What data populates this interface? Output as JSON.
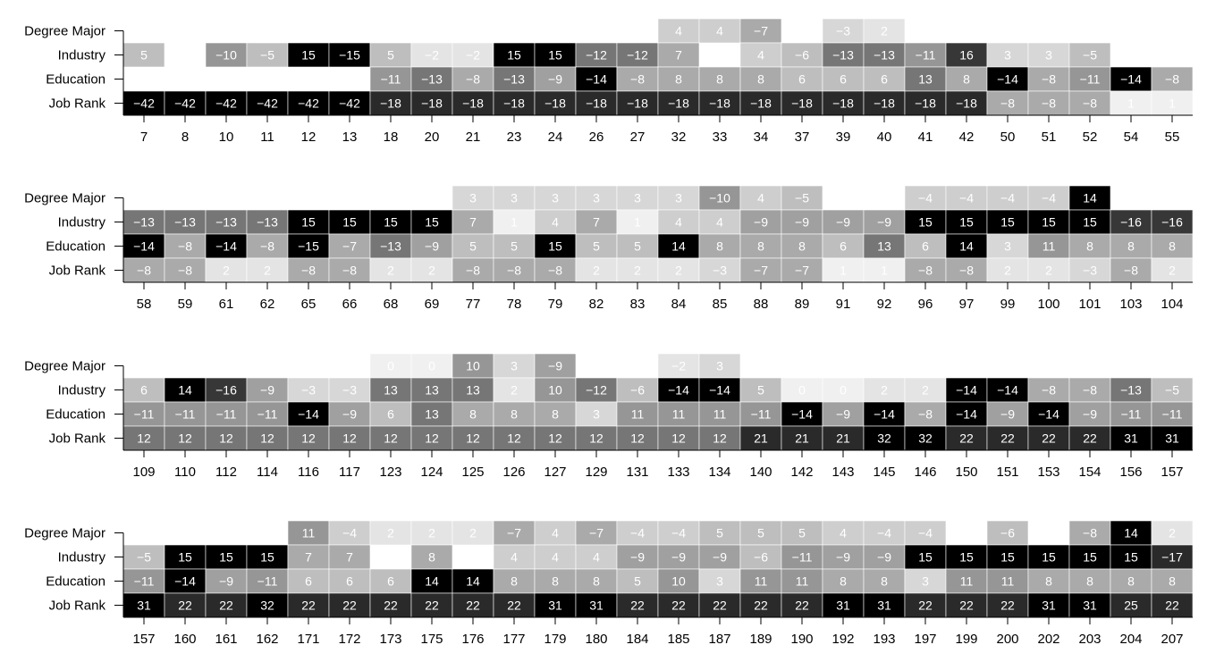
{
  "chart_data": {
    "type": "heatmap",
    "row_labels": [
      "Degree Major",
      "Industry",
      "Education",
      "Job Rank"
    ],
    "color_scale": "grayscale — darker cells have larger absolute values; blank cells have no value",
    "panels": [
      {
        "columns": [
          "7",
          "8",
          "10",
          "11",
          "12",
          "13",
          "18",
          "20",
          "21",
          "23",
          "24",
          "26",
          "27",
          "32",
          "33",
          "34",
          "37",
          "39",
          "40",
          "41",
          "42",
          "50",
          "51",
          "52",
          "54",
          "55"
        ],
        "rows": {
          "Degree Major": [
            null,
            null,
            null,
            null,
            null,
            null,
            null,
            null,
            null,
            null,
            null,
            null,
            null,
            4,
            4,
            -7,
            null,
            -3,
            2,
            null,
            null,
            null,
            null,
            null,
            null,
            null
          ],
          "Industry": [
            5,
            null,
            -10,
            -5,
            15,
            -15,
            5,
            -2,
            -2,
            15,
            15,
            -12,
            -12,
            7,
            null,
            4,
            -6,
            -13,
            -13,
            -11,
            16,
            3,
            3,
            -5,
            null,
            null
          ],
          "Education": [
            null,
            null,
            null,
            null,
            null,
            null,
            -11,
            -13,
            -8,
            -13,
            -9,
            -14,
            -8,
            8,
            8,
            8,
            6,
            6,
            6,
            13,
            8,
            -14,
            -8,
            -11,
            -14,
            -8
          ],
          "Job Rank": [
            -42,
            -42,
            -42,
            -42,
            -42,
            -42,
            -18,
            -18,
            -18,
            -18,
            -18,
            -18,
            -18,
            -18,
            -18,
            -18,
            -18,
            -18,
            -18,
            -18,
            -18,
            -8,
            -8,
            -8,
            1,
            1
          ]
        }
      },
      {
        "columns": [
          "58",
          "59",
          "61",
          "62",
          "65",
          "66",
          "68",
          "69",
          "77",
          "78",
          "79",
          "82",
          "83",
          "84",
          "85",
          "88",
          "89",
          "91",
          "92",
          "96",
          "97",
          "99",
          "100",
          "101",
          "103",
          "104"
        ],
        "rows": {
          "Degree Major": [
            null,
            null,
            null,
            null,
            null,
            null,
            null,
            null,
            3,
            3,
            3,
            3,
            3,
            3,
            -10,
            4,
            -5,
            null,
            null,
            -4,
            -4,
            -4,
            -4,
            14,
            null,
            null
          ],
          "Industry": [
            -13,
            -13,
            -13,
            -13,
            15,
            15,
            15,
            15,
            7,
            1,
            4,
            7,
            1,
            4,
            4,
            -9,
            -9,
            -9,
            -9,
            15,
            15,
            15,
            15,
            15,
            -16,
            -16
          ],
          "Education": [
            -14,
            -8,
            -14,
            -8,
            -15,
            -7,
            -13,
            -9,
            5,
            5,
            15,
            5,
            5,
            14,
            8,
            8,
            8,
            6,
            13,
            6,
            14,
            3,
            11,
            8,
            8,
            8
          ],
          "Job Rank": [
            -8,
            -8,
            2,
            2,
            -8,
            -8,
            2,
            2,
            -8,
            -8,
            -8,
            2,
            2,
            2,
            -3,
            -7,
            -7,
            1,
            1,
            -8,
            -8,
            2,
            2,
            -3,
            -8,
            2
          ]
        }
      },
      {
        "columns": [
          "109",
          "110",
          "112",
          "114",
          "116",
          "117",
          "123",
          "124",
          "125",
          "126",
          "127",
          "129",
          "131",
          "133",
          "134",
          "140",
          "142",
          "143",
          "145",
          "146",
          "150",
          "151",
          "153",
          "154",
          "156",
          "157"
        ],
        "rows": {
          "Degree Major": [
            null,
            null,
            null,
            null,
            null,
            null,
            0,
            0,
            10,
            3,
            -9,
            null,
            null,
            -2,
            3,
            null,
            null,
            null,
            null,
            null,
            null,
            null,
            null,
            null,
            null,
            null
          ],
          "Industry": [
            6,
            14,
            -16,
            -9,
            -3,
            -3,
            13,
            13,
            13,
            2,
            10,
            -12,
            -6,
            -14,
            -14,
            5,
            0,
            0,
            2,
            2,
            -14,
            -14,
            -8,
            -8,
            -13,
            -5
          ],
          "Education": [
            -11,
            -11,
            -11,
            -11,
            -14,
            -9,
            6,
            13,
            8,
            8,
            8,
            3,
            11,
            11,
            11,
            -11,
            -14,
            -9,
            -14,
            -8,
            -14,
            -9,
            -14,
            -9,
            -11,
            -11
          ],
          "Job Rank": [
            12,
            12,
            12,
            12,
            12,
            12,
            12,
            12,
            12,
            12,
            12,
            12,
            12,
            12,
            12,
            21,
            21,
            21,
            32,
            32,
            22,
            22,
            22,
            22,
            31,
            31
          ]
        }
      },
      {
        "columns": [
          "157",
          "160",
          "161",
          "162",
          "171",
          "172",
          "173",
          "175",
          "176",
          "177",
          "179",
          "180",
          "184",
          "185",
          "187",
          "189",
          "190",
          "192",
          "193",
          "197",
          "199",
          "200",
          "202",
          "203",
          "204",
          "207"
        ],
        "rows": {
          "Degree Major": [
            null,
            null,
            null,
            null,
            11,
            -4,
            2,
            2,
            2,
            -7,
            4,
            -7,
            -4,
            -4,
            5,
            5,
            5,
            4,
            -4,
            -4,
            null,
            -6,
            null,
            -8,
            14,
            2
          ],
          "Industry": [
            -5,
            15,
            15,
            15,
            7,
            7,
            null,
            8,
            null,
            4,
            4,
            4,
            -9,
            -9,
            -9,
            -6,
            -11,
            -9,
            -9,
            15,
            15,
            15,
            15,
            15,
            15,
            -17
          ],
          "Education": [
            -11,
            -14,
            -9,
            -11,
            6,
            6,
            6,
            14,
            14,
            8,
            8,
            8,
            5,
            10,
            3,
            11,
            11,
            8,
            8,
            3,
            11,
            11,
            8,
            8,
            8,
            8
          ],
          "Job Rank": [
            31,
            22,
            22,
            32,
            22,
            22,
            22,
            22,
            22,
            22,
            31,
            31,
            22,
            22,
            22,
            22,
            22,
            31,
            31,
            22,
            22,
            22,
            31,
            31,
            25,
            22
          ]
        }
      }
    ]
  }
}
